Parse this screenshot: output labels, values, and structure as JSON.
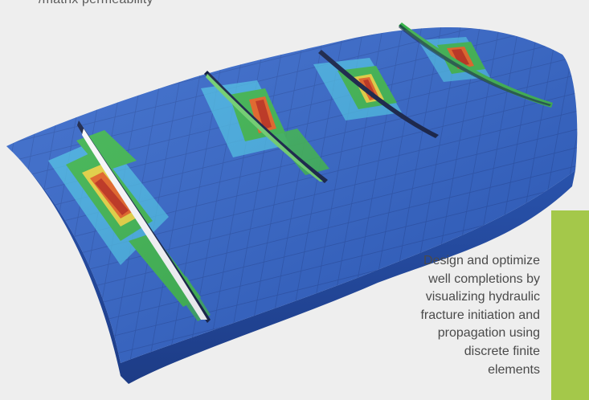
{
  "top_caption": "/matrix permeability",
  "caption_lines": [
    "Design and optimize",
    "well completions by",
    "visualizing hydraulic",
    "fracture initiation and",
    "propagation using",
    "discrete finite",
    "elements"
  ],
  "colors": {
    "background": "#eeeeee",
    "accent_bar": "#a4c84a",
    "mesh_blue": "#2f63c8",
    "mesh_light": "#48c3e8",
    "mesh_green": "#39b54a",
    "mesh_yellow": "#e8d43a",
    "mesh_orange": "#e8601c",
    "mesh_red": "#c02a12"
  }
}
